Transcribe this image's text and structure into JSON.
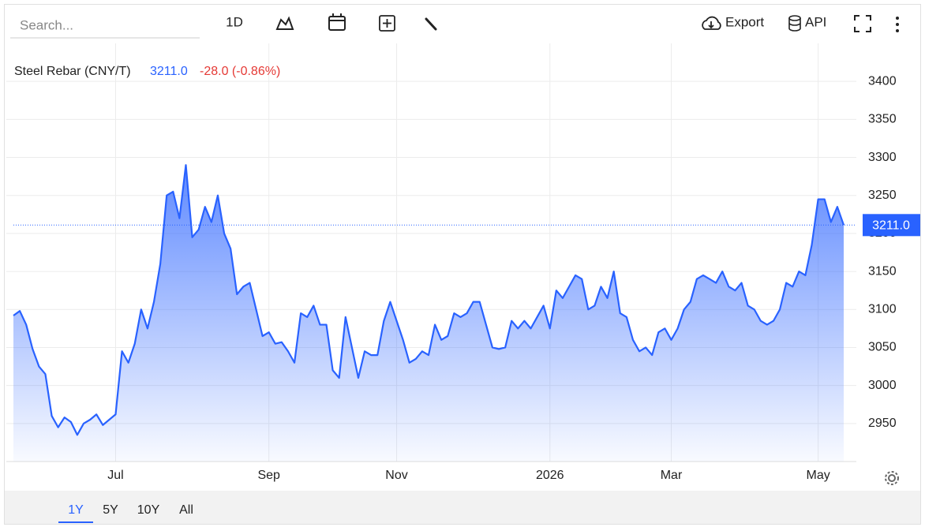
{
  "toolbar": {
    "search": "Search...",
    "interval": "1D",
    "export": "Export",
    "api": "API"
  },
  "ranges": [
    "1Y",
    "5Y",
    "10Y",
    "All"
  ],
  "chart_data": {
    "type": "area",
    "title": "Steel Rebar (CNY/T)",
    "price": "3211.0",
    "change": "-28.0 (-0.86%)",
    "last_label": "3211.0",
    "color": "#2962ff",
    "categories": [
      null,
      null,
      null,
      null,
      null,
      null,
      null,
      null,
      null,
      null,
      null,
      null,
      null,
      null,
      null,
      null,
      "Jul",
      null,
      null,
      null,
      null,
      null,
      null,
      null,
      null,
      null,
      null,
      null,
      null,
      null,
      null,
      null,
      null,
      null,
      null,
      null,
      null,
      null,
      null,
      null,
      "Sep",
      null,
      null,
      null,
      null,
      null,
      null,
      null,
      null,
      null,
      null,
      null,
      null,
      null,
      null,
      null,
      null,
      null,
      null,
      null,
      "Nov",
      null,
      null,
      null,
      null,
      null,
      null,
      null,
      null,
      null,
      null,
      null,
      null,
      null,
      null,
      null,
      null,
      null,
      null,
      null,
      null,
      null,
      null,
      null,
      "2026",
      null,
      null,
      null,
      null,
      null,
      null,
      null,
      null,
      null,
      null,
      null,
      null,
      null,
      null,
      null,
      null,
      null,
      null,
      "Mar",
      null,
      null,
      null,
      null,
      null,
      null,
      null,
      null,
      null,
      null,
      null,
      null,
      null,
      null,
      null,
      null,
      null,
      null,
      null,
      null,
      null,
      null,
      "May",
      null,
      null,
      null,
      null
    ],
    "values": [
      3092,
      3098,
      3080,
      3048,
      3025,
      3015,
      2960,
      2945,
      2958,
      2952,
      2935,
      2950,
      2955,
      2962,
      2948,
      2955,
      2962,
      3045,
      3030,
      3055,
      3100,
      3075,
      3110,
      3160,
      3250,
      3255,
      3220,
      3290,
      3195,
      3205,
      3235,
      3215,
      3250,
      3200,
      3180,
      3120,
      3130,
      3135,
      3100,
      3065,
      3070,
      3055,
      3057,
      3045,
      3030,
      3095,
      3090,
      3105,
      3080,
      3080,
      3020,
      3010,
      3090,
      3050,
      3010,
      3045,
      3040,
      3040,
      3085,
      3110,
      3085,
      3060,
      3030,
      3035,
      3045,
      3040,
      3080,
      3060,
      3065,
      3095,
      3090,
      3095,
      3110,
      3110,
      3080,
      3050,
      3048,
      3050,
      3085,
      3075,
      3085,
      3075,
      3090,
      3105,
      3075,
      3125,
      3115,
      3130,
      3145,
      3140,
      3100,
      3105,
      3130,
      3115,
      3150,
      3095,
      3090,
      3060,
      3045,
      3050,
      3040,
      3070,
      3075,
      3060,
      3075,
      3100,
      3110,
      3140,
      3145,
      3140,
      3135,
      3150,
      3130,
      3125,
      3135,
      3105,
      3100,
      3085,
      3080,
      3085,
      3100,
      3135,
      3130,
      3150,
      3145,
      3185,
      3245,
      3245,
      3215,
      3235,
      3211
    ],
    "ylim": [
      2900,
      3450
    ],
    "yticks": [
      2950,
      3000,
      3050,
      3100,
      3150,
      3200,
      3250,
      3300,
      3350,
      3400
    ],
    "grid": true
  }
}
